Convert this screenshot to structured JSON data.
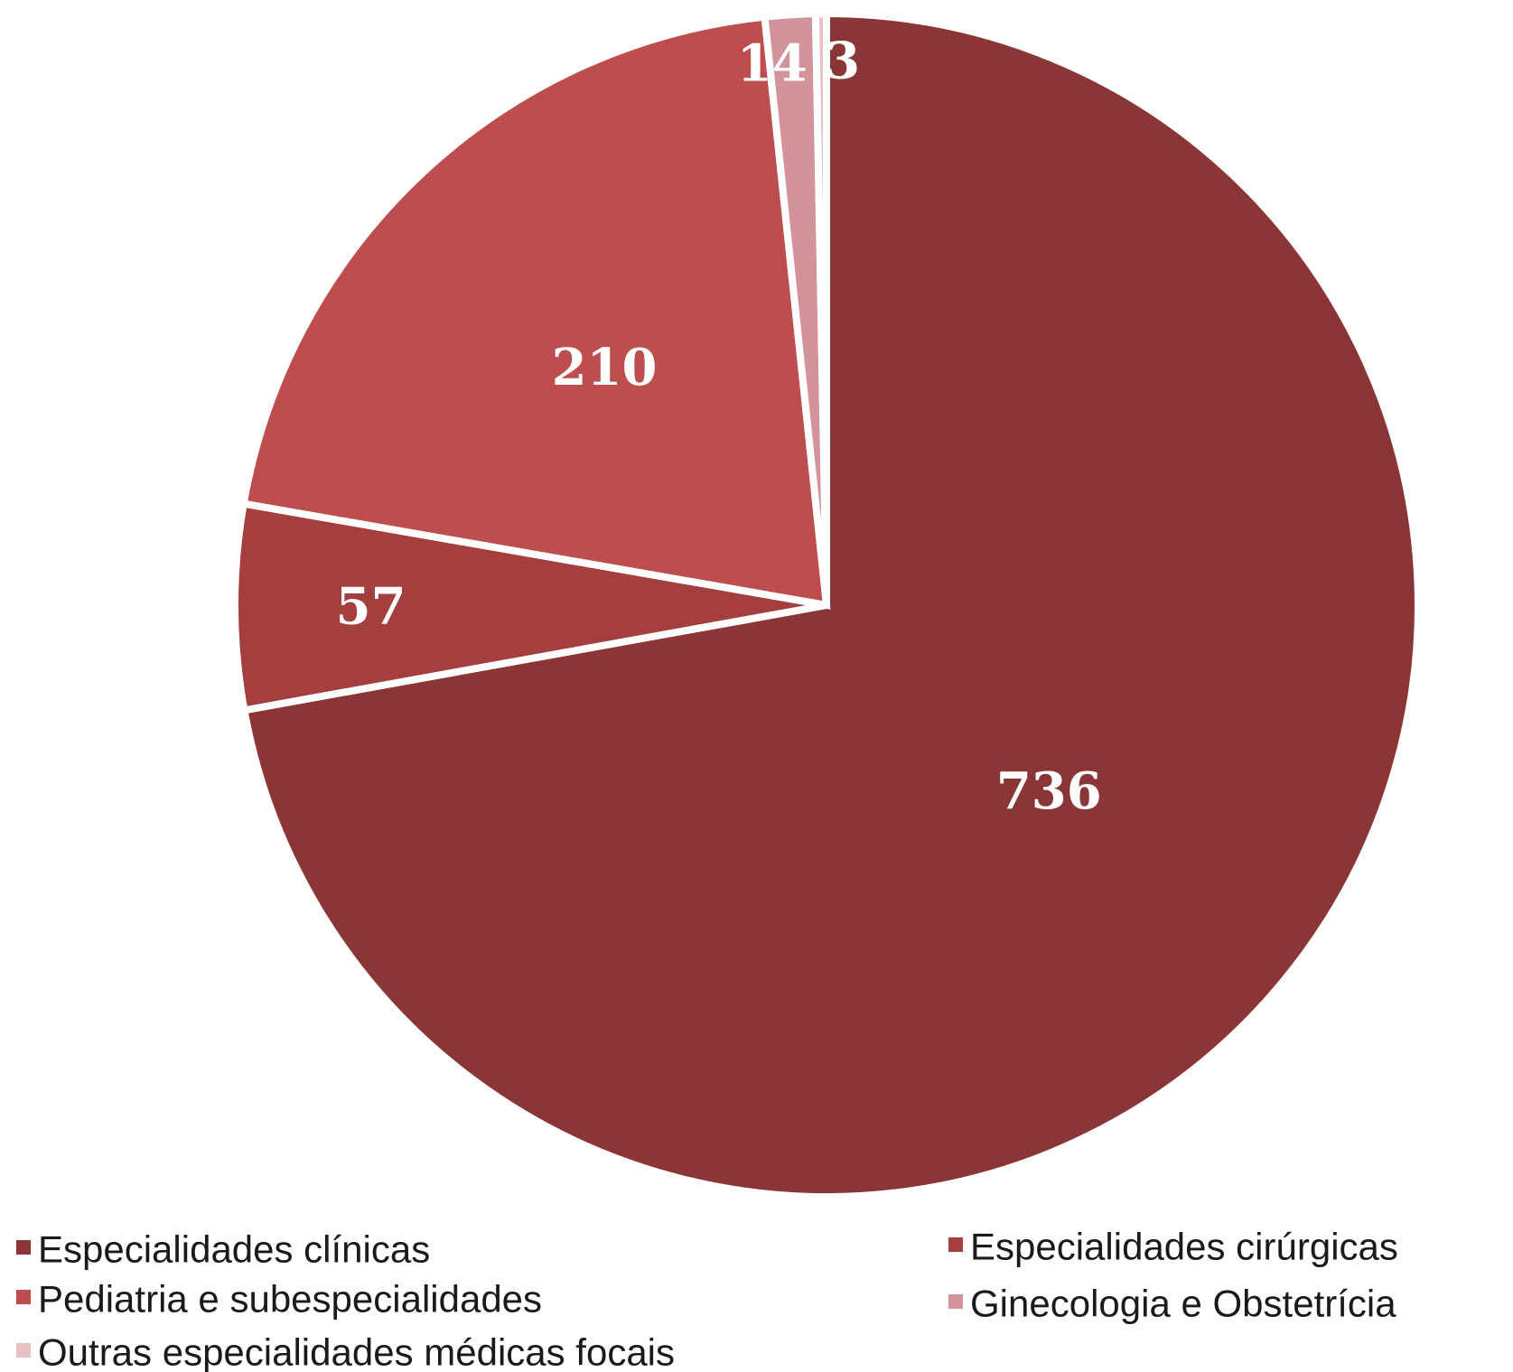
{
  "chart_data": {
    "type": "pie",
    "start_angle_deg": 0,
    "direction": "clockwise",
    "categories": [
      "Especialidades clínicas",
      "Especialidades cirúrgicas",
      "Pediatria e subespecialidades",
      "Ginecologia e Obstetrícia",
      "Outras especialidades médicas focais"
    ],
    "values": [
      736,
      57,
      210,
      14,
      3
    ],
    "data_labels": [
      "736",
      "57",
      "210",
      "14",
      "3"
    ],
    "colors": [
      "#8b3636",
      "#a53f3f",
      "#bd4e4d",
      "#d3939a",
      "#e8c1c5"
    ],
    "legend": {
      "placement": "bottom",
      "columns": 2,
      "order": [
        0,
        1,
        2,
        3,
        4
      ]
    }
  }
}
